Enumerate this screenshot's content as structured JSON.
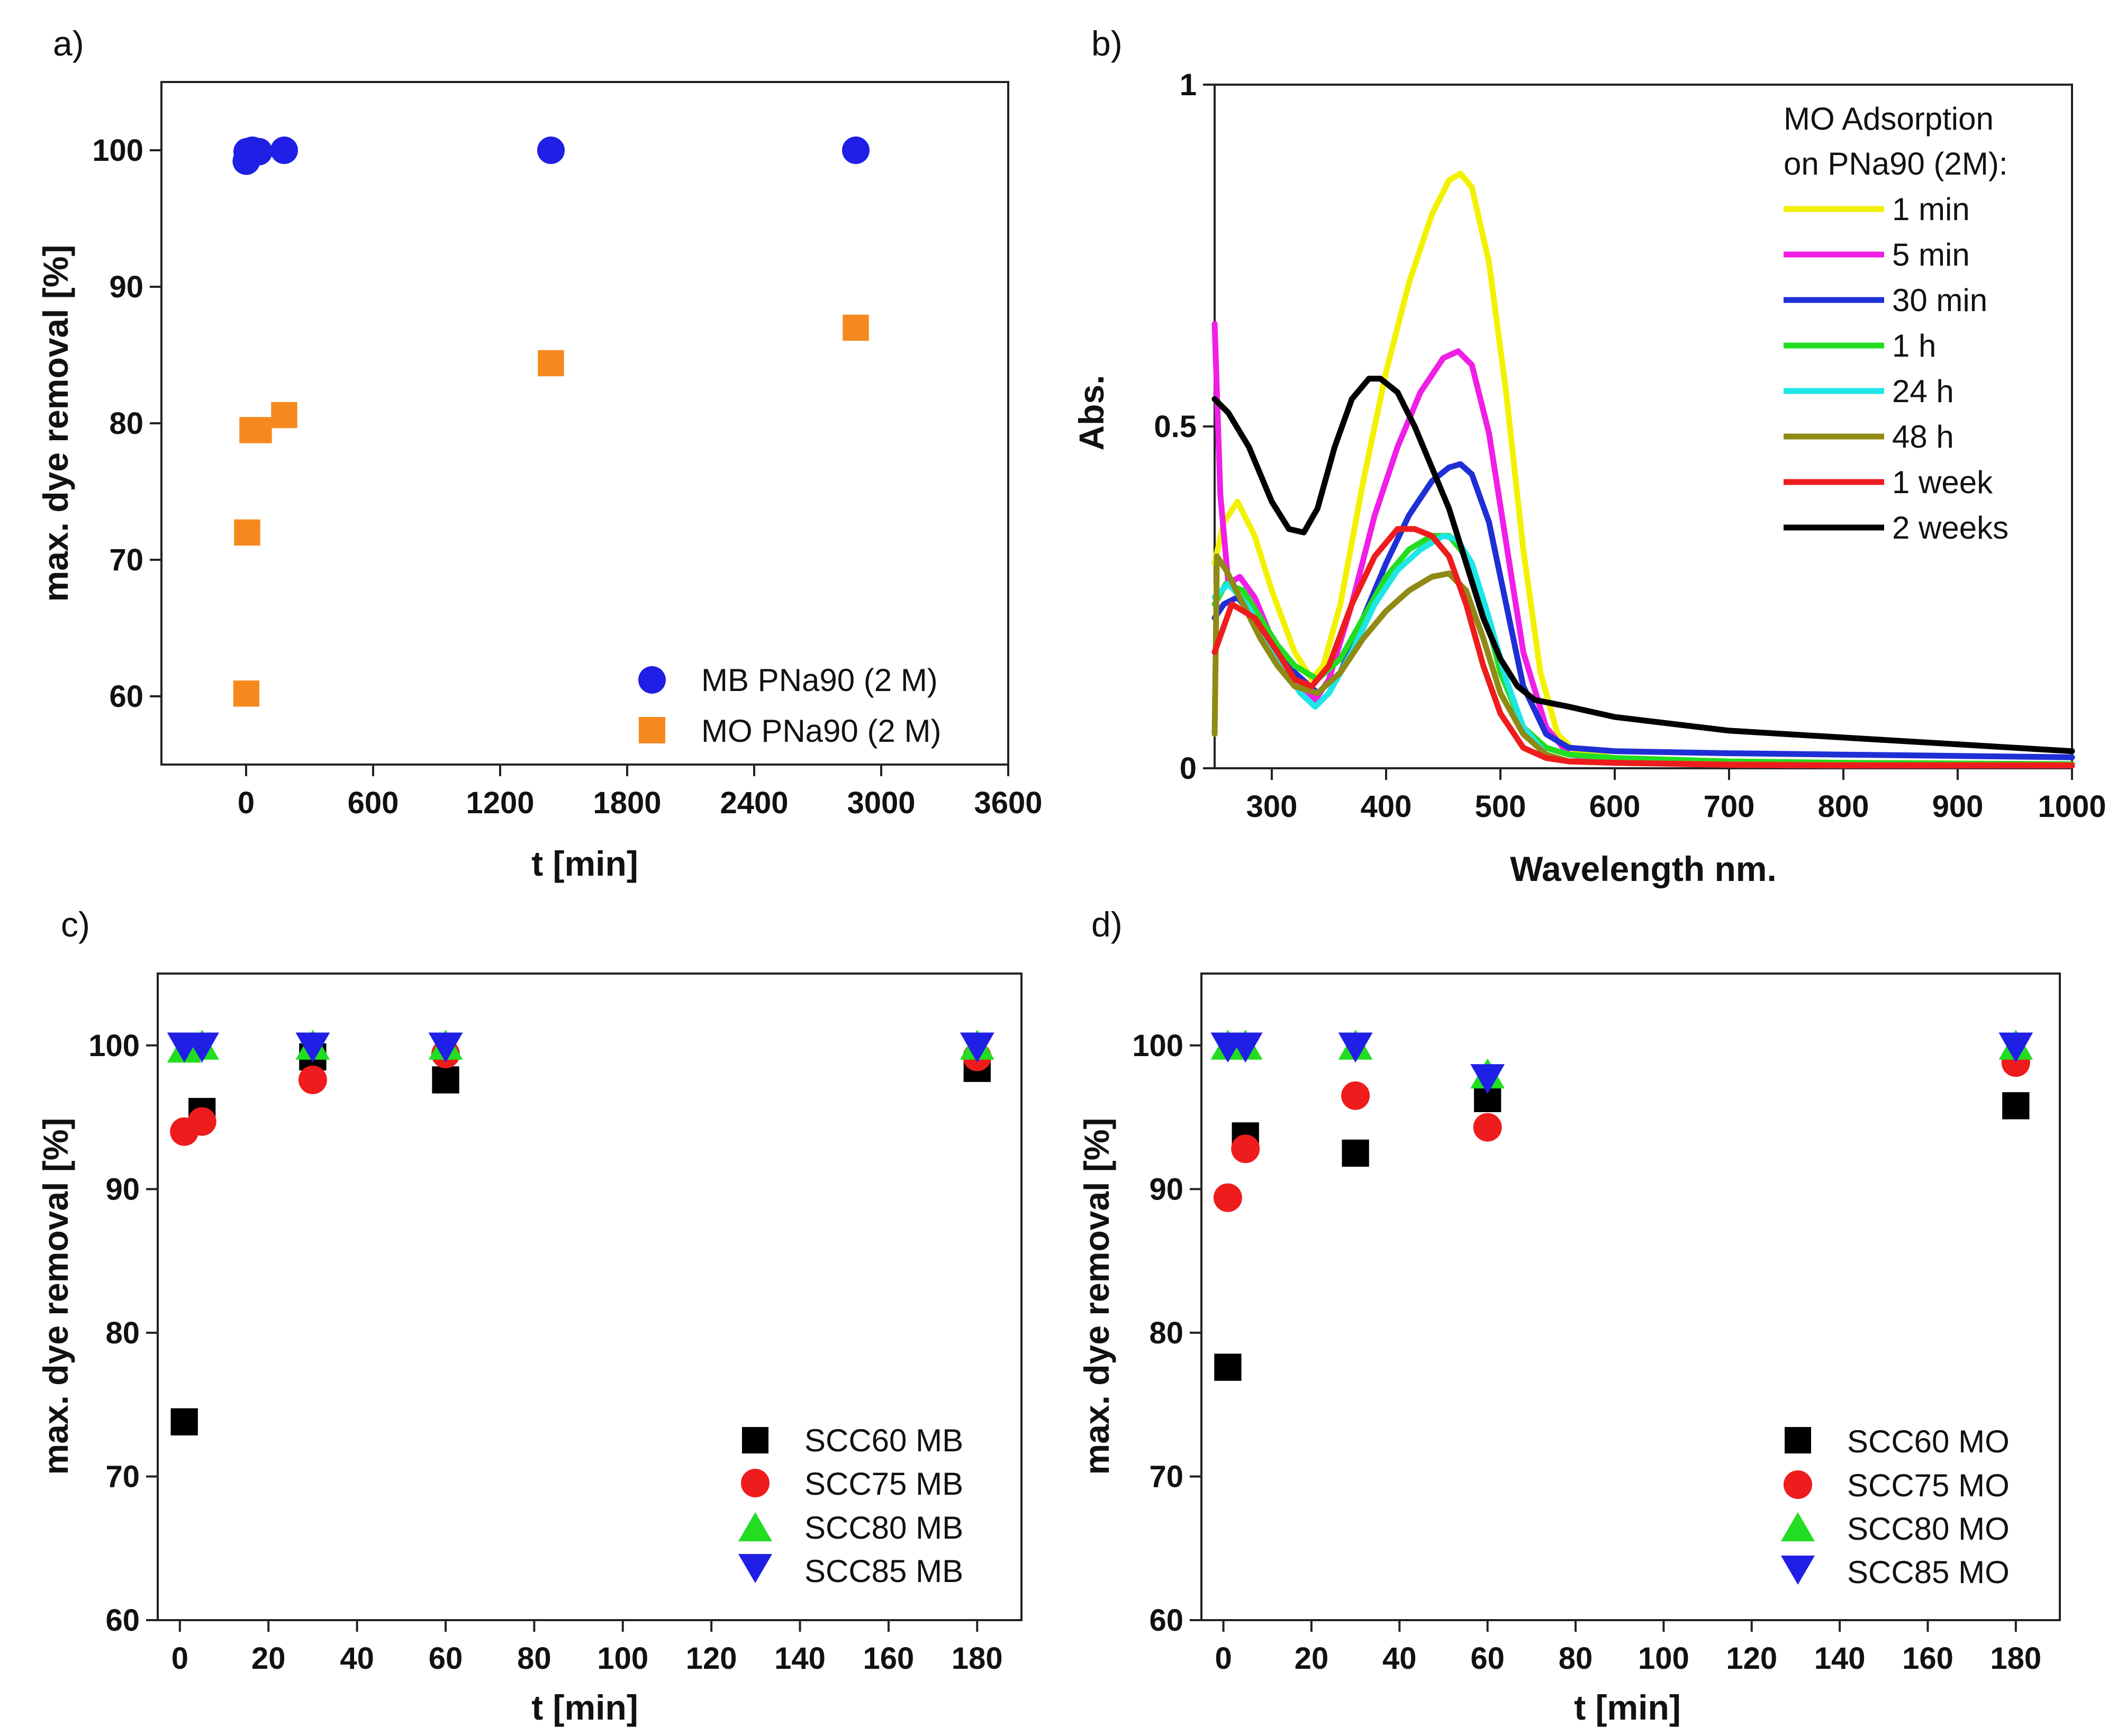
{
  "chart_data": [
    {
      "panel_label": "a)",
      "type": "scatter",
      "xlabel": "t [min]",
      "ylabel": "max. dye removal [%]",
      "xlim": [
        -400,
        3600
      ],
      "ylim": [
        55,
        105
      ],
      "xticks": [
        0,
        600,
        1200,
        1800,
        2400,
        3000,
        3600
      ],
      "xtick_labels": [
        "0",
        "600",
        "1200",
        "1800",
        "2400",
        "3000",
        "3600"
      ],
      "yticks": [
        60,
        70,
        80,
        90,
        100
      ],
      "ytick_labels": [
        "60",
        "70",
        "80",
        "90",
        "100"
      ],
      "legend_position": "bottom-right",
      "series": [
        {
          "name": "MB PNa90 (2 M)",
          "marker": "circle",
          "color": "#1f1fe6",
          "x": [
            1,
            5,
            30,
            60,
            180,
            1440,
            2880
          ],
          "y": [
            99.2,
            99.9,
            100,
            99.9,
            100,
            100,
            100
          ]
        },
        {
          "name": "MO PNa90 (2 M)",
          "marker": "square",
          "color": "#f5891e",
          "x": [
            1,
            5,
            30,
            60,
            180,
            1440,
            2880
          ],
          "y": [
            60.2,
            72,
            79.5,
            79.5,
            80.6,
            84.4,
            87
          ]
        }
      ]
    },
    {
      "panel_label": "b)",
      "type": "line",
      "xlabel": "Wavelength nm.",
      "ylabel": "Abs.",
      "xlim": [
        250,
        1000
      ],
      "ylim": [
        0,
        1
      ],
      "xticks": [
        300,
        400,
        500,
        600,
        700,
        800,
        900,
        1000
      ],
      "xtick_labels": [
        "300",
        "400",
        "500",
        "600",
        "700",
        "800",
        "900",
        "1000"
      ],
      "yticks": [
        0,
        0.5,
        1
      ],
      "ytick_labels": [
        "0",
        "0.5",
        "1"
      ],
      "legend_title": [
        "MO Adsorption",
        "on PNa90 (2M):"
      ],
      "legend_position": "top-right",
      "series": [
        {
          "name": "1 min",
          "color": "#f2f200",
          "x": [
            250,
            258,
            270,
            285,
            300,
            320,
            335,
            345,
            360,
            380,
            400,
            420,
            440,
            455,
            465,
            475,
            490,
            505,
            520,
            535,
            550,
            565,
            600,
            700,
            800,
            900,
            1000
          ],
          "y": [
            0.3,
            0.36,
            0.39,
            0.34,
            0.26,
            0.17,
            0.13,
            0.15,
            0.24,
            0.42,
            0.58,
            0.71,
            0.81,
            0.86,
            0.87,
            0.85,
            0.74,
            0.55,
            0.32,
            0.14,
            0.05,
            0.025,
            0.015,
            0.01,
            0.008,
            0.007,
            0.006
          ]
        },
        {
          "name": "5 min",
          "color": "#f01ee6",
          "x": [
            250,
            255,
            262,
            272,
            285,
            300,
            320,
            338,
            350,
            370,
            390,
            410,
            430,
            450,
            463,
            475,
            490,
            505,
            520,
            540,
            560,
            600,
            700,
            800,
            900,
            1000
          ],
          "y": [
            0.65,
            0.4,
            0.27,
            0.28,
            0.25,
            0.19,
            0.13,
            0.1,
            0.13,
            0.24,
            0.37,
            0.47,
            0.55,
            0.6,
            0.61,
            0.59,
            0.49,
            0.33,
            0.17,
            0.06,
            0.02,
            0.01,
            0.005,
            0.004,
            0.004,
            0.004
          ]
        },
        {
          "name": "30 min",
          "color": "#1f2fd6",
          "x": [
            250,
            258,
            270,
            285,
            300,
            320,
            340,
            360,
            380,
            400,
            420,
            440,
            455,
            465,
            475,
            490,
            505,
            520,
            540,
            560,
            600,
            700,
            800,
            900,
            1000
          ],
          "y": [
            0.22,
            0.24,
            0.25,
            0.22,
            0.18,
            0.14,
            0.11,
            0.14,
            0.22,
            0.3,
            0.37,
            0.42,
            0.44,
            0.445,
            0.43,
            0.36,
            0.24,
            0.12,
            0.05,
            0.03,
            0.025,
            0.022,
            0.02,
            0.018,
            0.016
          ]
        },
        {
          "name": "1 h",
          "color": "#22dd22",
          "x": [
            250,
            260,
            275,
            290,
            305,
            320,
            340,
            360,
            380,
            400,
            420,
            440,
            455,
            470,
            485,
            500,
            520,
            540,
            560,
            600,
            700,
            800,
            900,
            1000
          ],
          "y": [
            0.24,
            0.27,
            0.26,
            0.22,
            0.18,
            0.15,
            0.13,
            0.16,
            0.22,
            0.28,
            0.32,
            0.34,
            0.34,
            0.31,
            0.24,
            0.14,
            0.06,
            0.03,
            0.02,
            0.015,
            0.01,
            0.008,
            0.007,
            0.006
          ]
        },
        {
          "name": "24 h",
          "color": "#1ee6e6",
          "x": [
            250,
            262,
            278,
            295,
            310,
            325,
            338,
            350,
            370,
            390,
            410,
            430,
            450,
            462,
            475,
            490,
            505,
            520,
            540,
            560,
            600,
            700,
            800,
            900,
            1000
          ],
          "y": [
            0.25,
            0.27,
            0.24,
            0.19,
            0.15,
            0.11,
            0.09,
            0.11,
            0.17,
            0.24,
            0.29,
            0.32,
            0.34,
            0.335,
            0.3,
            0.22,
            0.13,
            0.06,
            0.02,
            0.01,
            0.008,
            0.005,
            0.004,
            0.004,
            0.004
          ]
        },
        {
          "name": "48 h",
          "color": "#8f8a14",
          "x": [
            250,
            252,
            260,
            275,
            290,
            305,
            320,
            340,
            360,
            380,
            400,
            420,
            440,
            455,
            470,
            485,
            500,
            520,
            540,
            560,
            600,
            700,
            800,
            900,
            1000
          ],
          "y": [
            0.05,
            0.31,
            0.29,
            0.24,
            0.19,
            0.15,
            0.12,
            0.11,
            0.14,
            0.19,
            0.23,
            0.26,
            0.28,
            0.285,
            0.26,
            0.19,
            0.11,
            0.05,
            0.02,
            0.01,
            0.008,
            0.006,
            0.005,
            0.005,
            0.005
          ]
        },
        {
          "name": "1 week",
          "color": "#ee1c1c",
          "x": [
            250,
            265,
            285,
            305,
            320,
            335,
            350,
            370,
            390,
            410,
            425,
            440,
            455,
            470,
            485,
            500,
            520,
            540,
            560,
            600,
            700,
            800,
            900,
            1000
          ],
          "y": [
            0.17,
            0.24,
            0.22,
            0.17,
            0.13,
            0.12,
            0.15,
            0.24,
            0.31,
            0.35,
            0.35,
            0.34,
            0.31,
            0.24,
            0.15,
            0.08,
            0.03,
            0.015,
            0.01,
            0.008,
            0.005,
            0.004,
            0.004,
            0.004
          ]
        },
        {
          "name": "2 weeks",
          "color": "#000000",
          "x": [
            250,
            262,
            280,
            300,
            315,
            328,
            340,
            355,
            370,
            385,
            395,
            410,
            425,
            440,
            455,
            470,
            485,
            500,
            515,
            530,
            545,
            560,
            600,
            700,
            800,
            900,
            1000
          ],
          "y": [
            0.54,
            0.52,
            0.47,
            0.39,
            0.35,
            0.345,
            0.38,
            0.47,
            0.54,
            0.57,
            0.57,
            0.55,
            0.5,
            0.44,
            0.38,
            0.3,
            0.22,
            0.16,
            0.12,
            0.1,
            0.095,
            0.09,
            0.075,
            0.055,
            0.045,
            0.035,
            0.025
          ]
        }
      ]
    },
    {
      "panel_label": "c)",
      "type": "scatter",
      "xlabel": "t [min]",
      "ylabel": "max. dye removal [%]",
      "xlim": [
        -5,
        190
      ],
      "ylim": [
        60,
        105
      ],
      "xticks": [
        0,
        20,
        40,
        60,
        80,
        100,
        120,
        140,
        160,
        180
      ],
      "xtick_labels": [
        "0",
        "20",
        "40",
        "60",
        "80",
        "100",
        "120",
        "140",
        "160",
        "180"
      ],
      "yticks": [
        60,
        70,
        80,
        90,
        100
      ],
      "ytick_labels": [
        "60",
        "70",
        "80",
        "90",
        "100"
      ],
      "legend_position": "bottom-right",
      "series": [
        {
          "name": "SCC60 MB",
          "marker": "square",
          "color": "#000000",
          "x": [
            1,
            5,
            30,
            60,
            180
          ],
          "y": [
            73.8,
            95.4,
            99.2,
            97.6,
            98.4
          ]
        },
        {
          "name": "SCC75 MB",
          "marker": "circle",
          "color": "#ee1c1c",
          "x": [
            1,
            5,
            30,
            60,
            180
          ],
          "y": [
            94,
            94.7,
            97.6,
            99.4,
            99.2
          ]
        },
        {
          "name": "SCC80 MB",
          "marker": "triangle-up",
          "color": "#22dd22",
          "x": [
            1,
            5,
            30,
            60,
            180
          ],
          "y": [
            99.8,
            100,
            100,
            100,
            100
          ]
        },
        {
          "name": "SCC85 MB",
          "marker": "triangle-down",
          "color": "#1f1fe6",
          "x": [
            1,
            5,
            30,
            60,
            180
          ],
          "y": [
            99.9,
            99.9,
            99.9,
            99.9,
            99.9
          ]
        }
      ]
    },
    {
      "panel_label": "d)",
      "type": "scatter",
      "xlabel": "t [min]",
      "ylabel": "max. dye removal [%]",
      "xlim": [
        -5,
        190
      ],
      "ylim": [
        60,
        105
      ],
      "xticks": [
        0,
        20,
        40,
        60,
        80,
        100,
        120,
        140,
        160,
        180
      ],
      "xtick_labels": [
        "0",
        "20",
        "40",
        "60",
        "80",
        "100",
        "120",
        "140",
        "160",
        "180"
      ],
      "yticks": [
        60,
        70,
        80,
        90,
        100
      ],
      "ytick_labels": [
        "60",
        "70",
        "80",
        "90",
        "100"
      ],
      "legend_position": "bottom-right",
      "series": [
        {
          "name": "SCC60 MO",
          "marker": "square",
          "color": "#000000",
          "x": [
            1,
            5,
            30,
            60,
            180
          ],
          "y": [
            77.6,
            93.7,
            92.5,
            96.3,
            95.8
          ]
        },
        {
          "name": "SCC75 MO",
          "marker": "circle",
          "color": "#ee1c1c",
          "x": [
            1,
            5,
            30,
            60,
            180
          ],
          "y": [
            89.4,
            92.8,
            96.5,
            94.3,
            98.8
          ]
        },
        {
          "name": "SCC80 MO",
          "marker": "triangle-up",
          "color": "#22dd22",
          "x": [
            1,
            5,
            30,
            60,
            180
          ],
          "y": [
            100,
            100,
            100,
            98,
            100
          ]
        },
        {
          "name": "SCC85 MO",
          "marker": "triangle-down",
          "color": "#1f1fe6",
          "x": [
            1,
            5,
            30,
            60,
            180
          ],
          "y": [
            99.9,
            99.9,
            99.9,
            97.7,
            99.9
          ]
        }
      ]
    }
  ]
}
